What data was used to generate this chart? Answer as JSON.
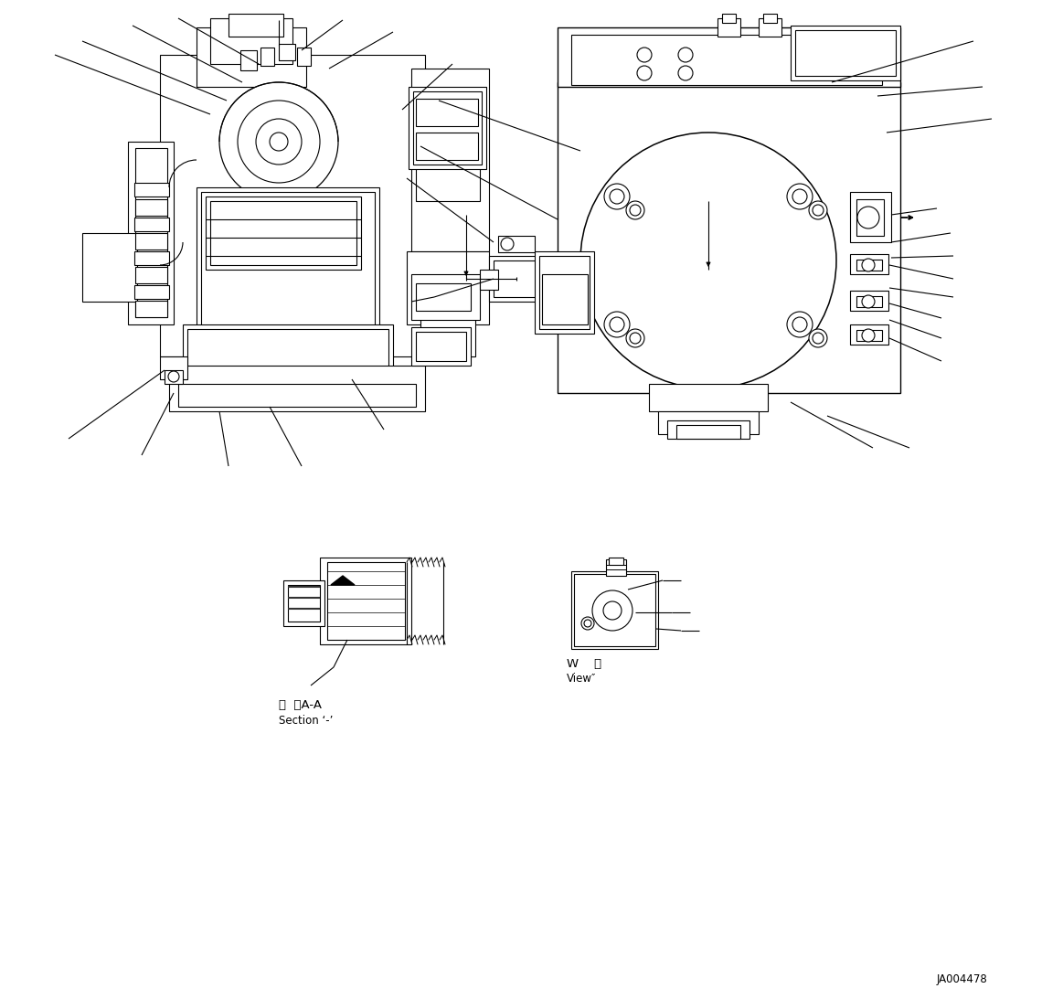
{
  "background_color": "#ffffff",
  "line_color": "#000000",
  "lw": 0.8,
  "fig_width": 11.63,
  "fig_height": 10.93,
  "drawing_id": "JA004478",
  "label_section_line1": "断  面A-A",
  "label_section_line2": "Section ‘-’",
  "label_view_line1": "W    視",
  "label_view_line2": "View″"
}
